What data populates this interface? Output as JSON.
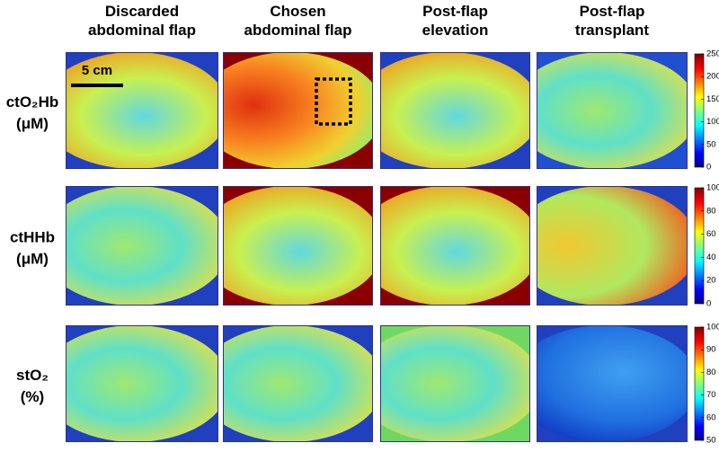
{
  "columns": [
    [
      "Discarded",
      "abdominal flap"
    ],
    [
      "Chosen",
      "abdominal flap"
    ],
    [
      "Post-flap",
      "elevation"
    ],
    [
      "Post-flap",
      "transplant"
    ]
  ],
  "rows": [
    {
      "label": [
        "ctO₂Hb",
        "(μM)"
      ],
      "colorbar": {
        "range": [
          0,
          250
        ],
        "ticks": [
          0,
          50,
          100,
          150,
          200,
          250
        ]
      }
    },
    {
      "label": [
        "ctHHb",
        "(μM)"
      ],
      "colorbar": {
        "range": [
          0,
          100
        ],
        "ticks": [
          0,
          20,
          40,
          60,
          80,
          100
        ]
      }
    },
    {
      "label": [
        "stO₂",
        "(%)"
      ],
      "colorbar": {
        "range": [
          50,
          100
        ],
        "ticks": [
          50,
          60,
          70,
          80,
          90,
          100
        ]
      }
    }
  ],
  "scale_bar": "5 cm"
}
